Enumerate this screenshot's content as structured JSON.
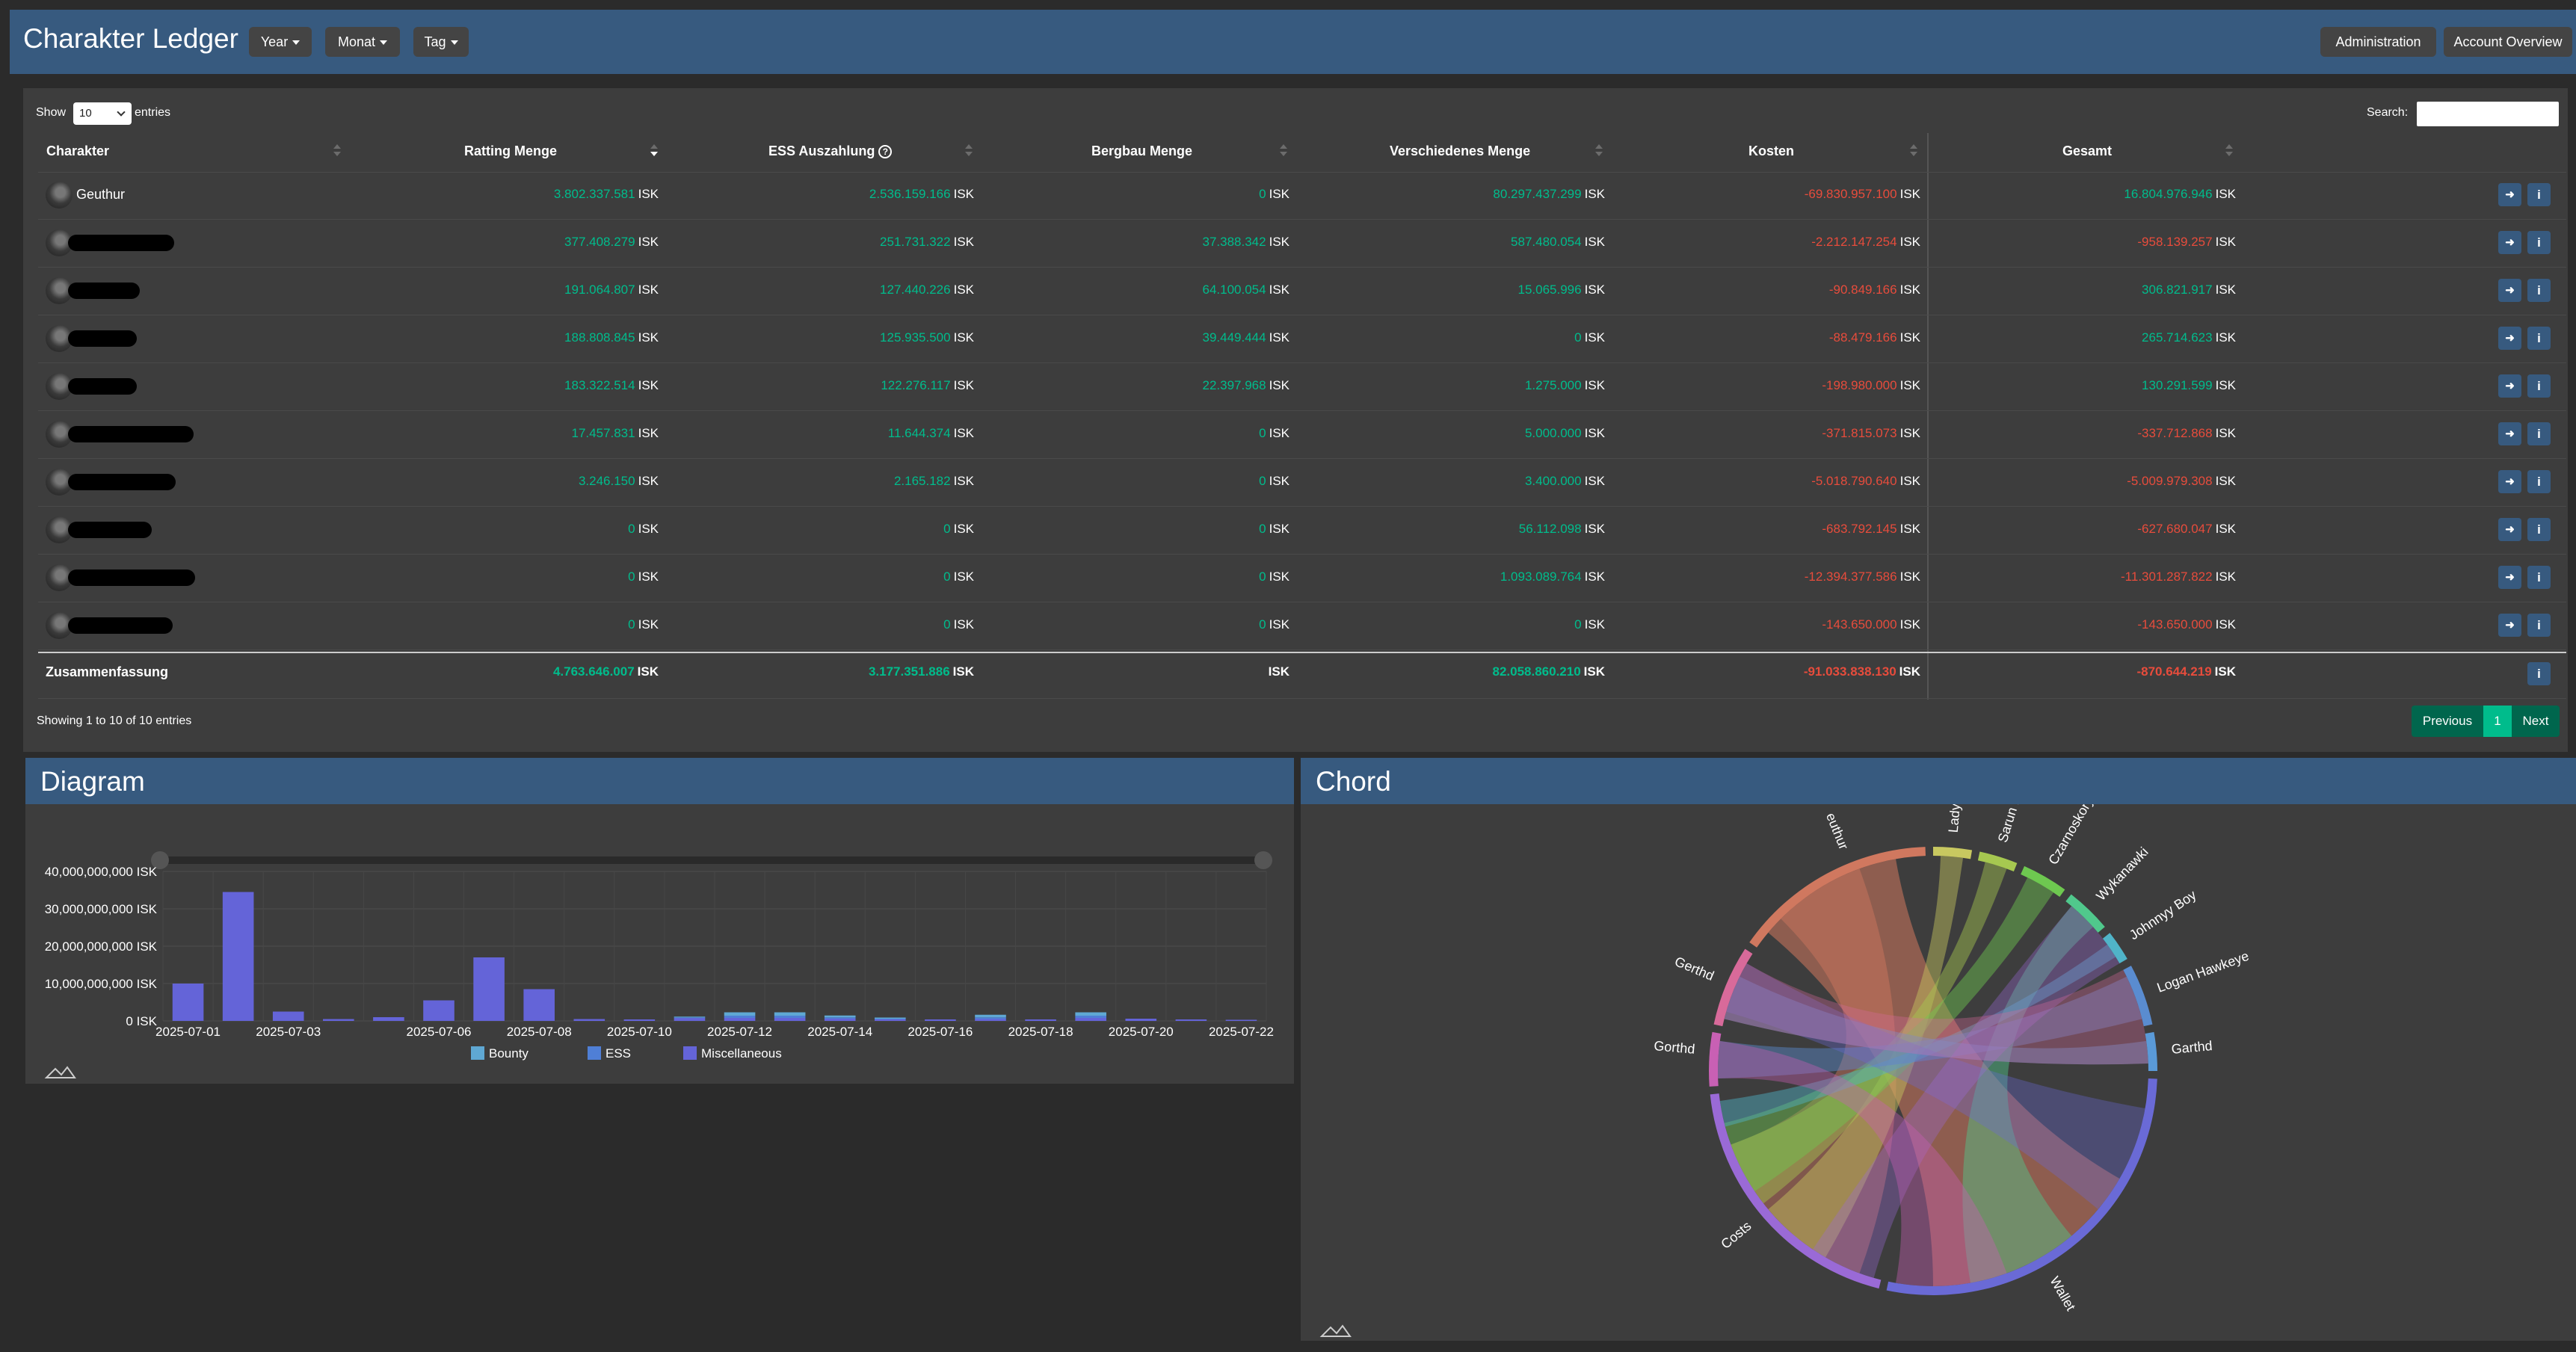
{
  "header": {
    "title": "Charakter Ledger",
    "dropdowns": [
      "Year",
      "Monat",
      "Tag"
    ],
    "admin_label": "Administration",
    "account_label": "Account Overview"
  },
  "table": {
    "show_label": "Show",
    "length_value": "10",
    "entries_label": "entries",
    "search_label": "Search:",
    "columns": [
      "Charakter",
      "Ratting Menge",
      "ESS Auszahlung",
      "Bergbau Menge",
      "Verschiedenes Menge",
      "Kosten",
      "Gesamt"
    ],
    "unit": "ISK",
    "rows": [
      {
        "name": "Geuthur",
        "values": [
          "3.802.337.581",
          "2.536.159.166",
          "0",
          "80.297.437.299",
          "-69.830.957.100",
          "16.804.976.946"
        ]
      },
      {
        "name": "",
        "values": [
          "377.408.279",
          "251.731.322",
          "37.388.342",
          "587.480.054",
          "-2.212.147.254",
          "-958.139.257"
        ]
      },
      {
        "name": "",
        "values": [
          "191.064.807",
          "127.440.226",
          "64.100.054",
          "15.065.996",
          "-90.849.166",
          "306.821.917"
        ]
      },
      {
        "name": "",
        "values": [
          "188.808.845",
          "125.935.500",
          "39.449.444",
          "0",
          "-88.479.166",
          "265.714.623"
        ]
      },
      {
        "name": "",
        "values": [
          "183.322.514",
          "122.276.117",
          "22.397.968",
          "1.275.000",
          "-198.980.000",
          "130.291.599"
        ]
      },
      {
        "name": "",
        "values": [
          "17.457.831",
          "11.644.374",
          "0",
          "5.000.000",
          "-371.815.073",
          "-337.712.868"
        ]
      },
      {
        "name": "",
        "values": [
          "3.246.150",
          "2.165.182",
          "0",
          "3.400.000",
          "-5.018.790.640",
          "-5.009.979.308"
        ]
      },
      {
        "name": "",
        "values": [
          "0",
          "0",
          "0",
          "56.112.098",
          "-683.792.145",
          "-627.680.047"
        ]
      },
      {
        "name": "",
        "values": [
          "0",
          "0",
          "0",
          "1.093.089.764",
          "-12.394.377.586",
          "-11.301.287.822"
        ]
      },
      {
        "name": "",
        "values": [
          "0",
          "0",
          "0",
          "0",
          "-143.650.000",
          "-143.650.000"
        ]
      }
    ],
    "summary": {
      "label": "Zusammenfassung",
      "values": [
        "4.763.646.007",
        "3.177.351.886",
        "",
        "82.058.860.210",
        "-91.033.838.130",
        "-870.644.219"
      ]
    },
    "info": "Showing 1 to 10 of 10 entries",
    "prev_label": "Previous",
    "page": "1",
    "next_label": "Next"
  },
  "diagram": {
    "title": "Diagram"
  },
  "chord": {
    "title": "Chord",
    "labels": [
      "euthur",
      "Lady",
      "Sarun Dk.",
      "Czarnoskory",
      "Wykanawki",
      "Johnnyy Boy",
      "Logan Hawkeye",
      "Garthd",
      "Wallet",
      "Costs",
      "Gorthd",
      "Gerthd"
    ]
  },
  "colors": {
    "accent": "#375a7f",
    "positive": "#00bc8c",
    "negative": "#e74c3c",
    "success": "#00bc8c"
  },
  "chart_data": {
    "type": "bar",
    "title": "",
    "categories": [
      "2025-07-01",
      "2025-07-02",
      "2025-07-03",
      "2025-07-04",
      "2025-07-05",
      "2025-07-06",
      "2025-07-07",
      "2025-07-08",
      "2025-07-09",
      "2025-07-10",
      "2025-07-11",
      "2025-07-12",
      "2025-07-13",
      "2025-07-14",
      "2025-07-15",
      "2025-07-16",
      "2025-07-17",
      "2025-07-18",
      "2025-07-19",
      "2025-07-20",
      "2025-07-21",
      "2025-07-22"
    ],
    "tick_labels": [
      "2025-07-01",
      "2025-07-03",
      "2025-07-06",
      "2025-07-08",
      "2025-07-10",
      "2025-07-12",
      "2025-07-14",
      "2025-07-16",
      "2025-07-18",
      "2025-07-20",
      "2025-07-22"
    ],
    "series": [
      {
        "name": "Bounty",
        "color": "#5fa8d3",
        "values": [
          0,
          0,
          0,
          0,
          0,
          0,
          0,
          0,
          0,
          0,
          200000000,
          900000000,
          900000000,
          500000000,
          300000000,
          0,
          700000000,
          0,
          900000000,
          0,
          0,
          0
        ]
      },
      {
        "name": "ESS",
        "color": "#4f7fd6",
        "values": [
          0,
          0,
          0,
          0,
          0,
          0,
          0,
          0,
          0,
          0,
          150000000,
          600000000,
          600000000,
          350000000,
          200000000,
          0,
          450000000,
          0,
          600000000,
          0,
          0,
          0
        ]
      },
      {
        "name": "Miscellaneous",
        "color": "#6464d8",
        "values": [
          10000000000,
          34500000000,
          2500000000,
          500000000,
          1000000000,
          5500000000,
          17000000000,
          8500000000,
          500000000,
          400000000,
          800000000,
          800000000,
          800000000,
          600000000,
          400000000,
          400000000,
          500000000,
          400000000,
          800000000,
          600000000,
          400000000,
          300000000
        ]
      }
    ],
    "ylim": [
      0,
      40000000000
    ],
    "y_ticks": [
      {
        "value": 0,
        "label": "0 ISK"
      },
      {
        "value": 10000000000,
        "label": "10,000,000,000 ISK"
      },
      {
        "value": 20000000000,
        "label": "20,000,000,000 ISK"
      },
      {
        "value": 30000000000,
        "label": "30,000,000,000 ISK"
      },
      {
        "value": 40000000000,
        "label": "40,000,000,000 ISK"
      }
    ],
    "legend_position": "bottom-center",
    "grid": true
  }
}
